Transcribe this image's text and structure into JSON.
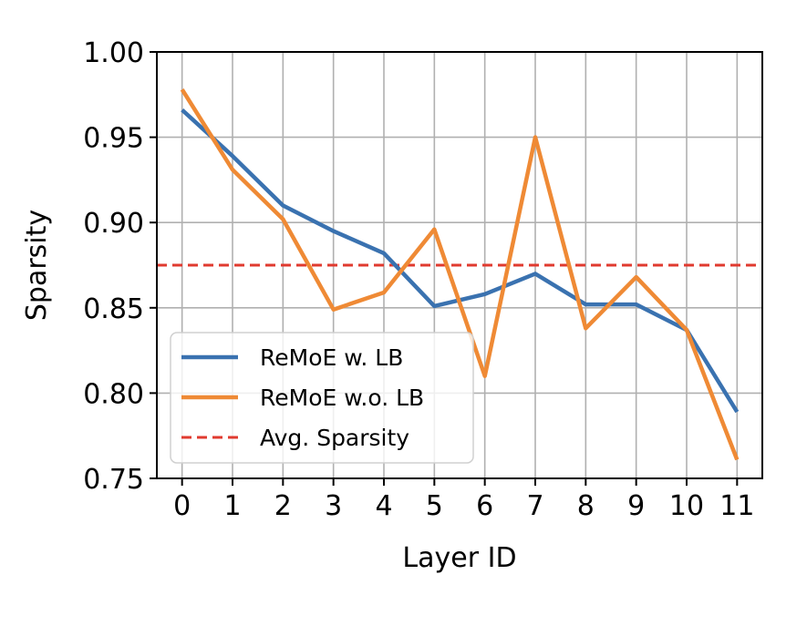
{
  "chart_data": {
    "type": "line",
    "x": [
      0,
      1,
      2,
      3,
      4,
      5,
      6,
      7,
      8,
      9,
      10,
      11
    ],
    "xlabel": "Layer ID",
    "ylabel": "Sparsity",
    "xticks": [
      "0",
      "1",
      "2",
      "3",
      "4",
      "5",
      "6",
      "7",
      "8",
      "9",
      "10",
      "11"
    ],
    "yticks": [
      "0.75",
      "0.80",
      "0.85",
      "0.90",
      "0.95",
      "1.00"
    ],
    "xlim": [
      -0.5,
      11.5
    ],
    "ylim": [
      0.75,
      1.0
    ],
    "grid": true,
    "legend_position": "lower-left",
    "series": [
      {
        "name": "ReMoE w. LB",
        "color": "#3a72b0",
        "style": "solid",
        "values": [
          0.966,
          0.939,
          0.91,
          0.895,
          0.882,
          0.851,
          0.858,
          0.87,
          0.852,
          0.852,
          0.837,
          0.789
        ]
      },
      {
        "name": "ReMoE w.o. LB",
        "color": "#ef8a35",
        "style": "solid",
        "values": [
          0.978,
          0.931,
          0.902,
          0.849,
          0.859,
          0.896,
          0.81,
          0.95,
          0.838,
          0.868,
          0.837,
          0.761
        ]
      },
      {
        "name": "Avg. Sparsity",
        "color": "#e03a2f",
        "style": "dashed",
        "values": [
          0.875,
          0.875,
          0.875,
          0.875,
          0.875,
          0.875,
          0.875,
          0.875,
          0.875,
          0.875,
          0.875,
          0.875
        ]
      }
    ]
  }
}
